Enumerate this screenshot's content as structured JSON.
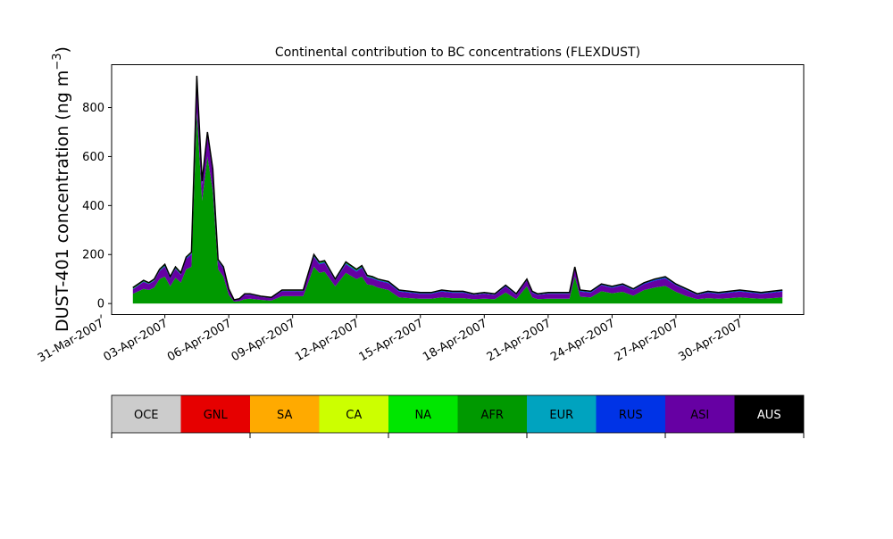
{
  "chart_data": {
    "type": "area",
    "stacked": true,
    "title": "Continental contribution to BC concentrations (FLEXDUST)",
    "ylabel": "DUST-401 concentration (ng m",
    "ylabel_exp": "−3",
    "ylabel_close": ")",
    "xlabel": "",
    "ylim": [
      -45,
      975
    ],
    "yticks": [
      0,
      200,
      400,
      600,
      800
    ],
    "xlim": [
      "2007-03-31T12:00",
      "2007-05-03T00:00"
    ],
    "xticks": [
      "2007-03-31",
      "2007-04-03",
      "2007-04-06",
      "2007-04-09",
      "2007-04-12",
      "2007-04-15",
      "2007-04-18",
      "2007-04-21",
      "2007-04-24",
      "2007-04-27",
      "2007-04-30"
    ],
    "xtick_labels": [
      "31-Mar-2007",
      "03-Apr-2007",
      "06-Apr-2007",
      "09-Apr-2007",
      "12-Apr-2007",
      "15-Apr-2007",
      "18-Apr-2007",
      "21-Apr-2007",
      "24-Apr-2007",
      "27-Apr-2007",
      "30-Apr-2007"
    ],
    "grid": false,
    "legend": {
      "placement": "bottom",
      "entries": [
        {
          "name": "OCE",
          "color": "#cccccc"
        },
        {
          "name": "GNL",
          "color": "#e60000"
        },
        {
          "name": "SA",
          "color": "#ffaa00"
        },
        {
          "name": "CA",
          "color": "#ccff00"
        },
        {
          "name": "NA",
          "color": "#00e600"
        },
        {
          "name": "AFR",
          "color": "#009900"
        },
        {
          "name": "EUR",
          "color": "#00a3bf"
        },
        {
          "name": "RUS",
          "color": "#0033e6"
        },
        {
          "name": "ASI",
          "color": "#6600a3"
        },
        {
          "name": "AUS",
          "color": "#000000"
        }
      ]
    },
    "x": [
      "2007-04-01T12:00",
      "2007-04-02T00:00",
      "2007-04-02T06:00",
      "2007-04-02T12:00",
      "2007-04-02T18:00",
      "2007-04-03T00:00",
      "2007-04-03T06:00",
      "2007-04-03T12:00",
      "2007-04-03T18:00",
      "2007-04-04T00:00",
      "2007-04-04T06:00",
      "2007-04-04T12:00",
      "2007-04-04T18:00",
      "2007-04-05T00:00",
      "2007-04-05T06:00",
      "2007-04-05T12:00",
      "2007-04-05T18:00",
      "2007-04-06T00:00",
      "2007-04-06T06:00",
      "2007-04-06T12:00",
      "2007-04-06T18:00",
      "2007-04-07T00:00",
      "2007-04-07T12:00",
      "2007-04-08T00:00",
      "2007-04-08T12:00",
      "2007-04-09T00:00",
      "2007-04-09T12:00",
      "2007-04-10T00:00",
      "2007-04-10T06:00",
      "2007-04-10T12:00",
      "2007-04-11T00:00",
      "2007-04-11T12:00",
      "2007-04-12T00:00",
      "2007-04-12T06:00",
      "2007-04-12T12:00",
      "2007-04-12T18:00",
      "2007-04-13T00:00",
      "2007-04-13T12:00",
      "2007-04-14T00:00",
      "2007-04-14T12:00",
      "2007-04-15T00:00",
      "2007-04-15T12:00",
      "2007-04-16T00:00",
      "2007-04-16T12:00",
      "2007-04-17T00:00",
      "2007-04-17T12:00",
      "2007-04-18T00:00",
      "2007-04-18T12:00",
      "2007-04-19T00:00",
      "2007-04-19T12:00",
      "2007-04-20T00:00",
      "2007-04-20T06:00",
      "2007-04-20T12:00",
      "2007-04-21T00:00",
      "2007-04-21T12:00",
      "2007-04-22T00:00",
      "2007-04-22T06:00",
      "2007-04-22T12:00",
      "2007-04-23T00:00",
      "2007-04-23T12:00",
      "2007-04-24T00:00",
      "2007-04-24T12:00",
      "2007-04-25T00:00",
      "2007-04-25T12:00",
      "2007-04-26T00:00",
      "2007-04-26T12:00",
      "2007-04-27T00:00",
      "2007-04-27T12:00",
      "2007-04-28T00:00",
      "2007-04-28T12:00",
      "2007-04-29T00:00",
      "2007-04-29T12:00",
      "2007-04-30T00:00",
      "2007-04-30T12:00",
      "2007-05-01T00:00",
      "2007-05-01T12:00",
      "2007-05-02T00:00"
    ],
    "total": [
      65,
      95,
      85,
      100,
      140,
      160,
      110,
      150,
      125,
      190,
      210,
      930,
      500,
      700,
      550,
      180,
      150,
      60,
      15,
      20,
      40,
      40,
      30,
      25,
      55,
      55,
      55,
      200,
      170,
      175,
      100,
      170,
      140,
      155,
      115,
      110,
      100,
      90,
      55,
      50,
      45,
      45,
      55,
      50,
      50,
      40,
      45,
      40,
      75,
      40,
      100,
      50,
      40,
      45,
      45,
      45,
      150,
      55,
      50,
      80,
      70,
      80,
      60,
      85,
      100,
      110,
      80,
      60,
      40,
      50,
      45,
      50,
      55,
      50,
      45,
      50,
      55
    ],
    "series": [
      {
        "name": "AFR",
        "values": [
          40,
          60,
          55,
          65,
          100,
          110,
          70,
          105,
          85,
          140,
          150,
          780,
          420,
          600,
          460,
          140,
          110,
          35,
          8,
          10,
          18,
          20,
          15,
          12,
          30,
          30,
          30,
          150,
          125,
          130,
          70,
          125,
          100,
          110,
          78,
          75,
          65,
          55,
          25,
          22,
          20,
          20,
          25,
          22,
          22,
          18,
          20,
          18,
          45,
          18,
          70,
          25,
          18,
          20,
          20,
          20,
          110,
          28,
          25,
          50,
          42,
          48,
          32,
          55,
          65,
          72,
          48,
          30,
          18,
          22,
          20,
          22,
          25,
          22,
          20,
          22,
          25
        ]
      },
      {
        "name": "ASI",
        "values": [
          18,
          28,
          24,
          28,
          32,
          40,
          32,
          36,
          32,
          42,
          50,
          120,
          65,
          85,
          75,
          32,
          32,
          20,
          5,
          8,
          18,
          16,
          12,
          10,
          20,
          20,
          20,
          40,
          35,
          35,
          24,
          35,
          30,
          35,
          29,
          27,
          28,
          28,
          24,
          22,
          19,
          19,
          24,
          22,
          22,
          17,
          20,
          17,
          24,
          17,
          24,
          19,
          17,
          20,
          20,
          20,
          32,
          21,
          19,
          24,
          22,
          26,
          22,
          24,
          28,
          30,
          26,
          24,
          17,
          22,
          19,
          22,
          24,
          22,
          19,
          22,
          24
        ]
      },
      {
        "name": "RUS",
        "values": [
          2,
          2,
          2,
          2,
          3,
          4,
          3,
          3,
          3,
          4,
          4,
          12,
          6,
          6,
          6,
          3,
          3,
          2,
          1,
          1,
          2,
          2,
          1,
          1,
          2,
          2,
          2,
          4,
          4,
          4,
          2,
          4,
          4,
          4,
          3,
          3,
          3,
          3,
          3,
          3,
          3,
          3,
          3,
          3,
          3,
          2,
          2,
          2,
          3,
          2,
          3,
          3,
          2,
          2,
          2,
          2,
          4,
          3,
          3,
          3,
          3,
          3,
          3,
          3,
          4,
          4,
          3,
          3,
          2,
          3,
          3,
          3,
          3,
          3,
          3,
          3,
          3
        ]
      },
      {
        "name": "NA",
        "values": [
          3,
          3,
          3,
          3,
          3,
          3,
          3,
          3,
          3,
          3,
          3,
          5,
          4,
          4,
          4,
          3,
          3,
          2,
          1,
          1,
          1,
          1,
          1,
          1,
          2,
          2,
          2,
          3,
          3,
          3,
          2,
          3,
          3,
          3,
          3,
          3,
          2,
          2,
          2,
          2,
          2,
          2,
          2,
          2,
          2,
          2,
          2,
          2,
          2,
          2,
          2,
          2,
          2,
          2,
          2,
          2,
          3,
          2,
          2,
          2,
          2,
          2,
          2,
          2,
          2,
          2,
          2,
          2,
          2,
          2,
          2,
          2,
          2,
          2,
          2,
          2,
          2
        ]
      },
      {
        "name": "AUS",
        "values": [
          2,
          2,
          1,
          2,
          2,
          3,
          2,
          3,
          2,
          1,
          3,
          13,
          5,
          5,
          5,
          2,
          2,
          1,
          0,
          0,
          1,
          1,
          1,
          1,
          1,
          1,
          1,
          3,
          3,
          3,
          2,
          3,
          3,
          3,
          2,
          2,
          2,
          2,
          1,
          1,
          1,
          1,
          1,
          1,
          1,
          1,
          1,
          1,
          1,
          1,
          1,
          1,
          1,
          1,
          1,
          1,
          1,
          1,
          1,
          1,
          1,
          1,
          1,
          1,
          1,
          2,
          1,
          1,
          1,
          1,
          1,
          1,
          1,
          1,
          1,
          1,
          1
        ]
      }
    ]
  }
}
